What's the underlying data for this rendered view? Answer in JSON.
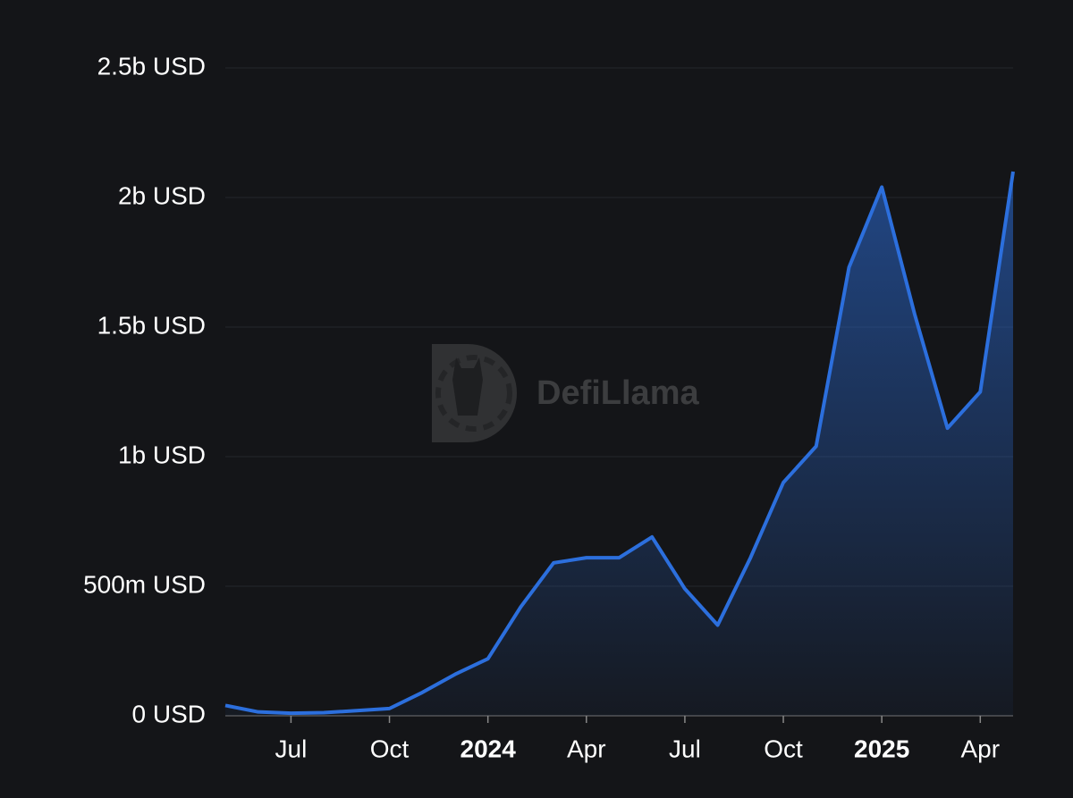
{
  "chart_data": {
    "type": "area",
    "watermark": "DefiLlama",
    "x": [
      "2023-05",
      "2023-06",
      "2023-07",
      "2023-08",
      "2023-09",
      "2023-10",
      "2023-11",
      "2023-12",
      "2024-01",
      "2024-02",
      "2024-03",
      "2024-04",
      "2024-05",
      "2024-06",
      "2024-07",
      "2024-08",
      "2024-09",
      "2024-10",
      "2024-11",
      "2024-12",
      "2025-01",
      "2025-02",
      "2025-03",
      "2025-04",
      "2025-05"
    ],
    "values": [
      40000000,
      15000000,
      10000000,
      12000000,
      20000000,
      28000000,
      90000000,
      160000000,
      220000000,
      420000000,
      590000000,
      610000000,
      610000000,
      690000000,
      490000000,
      350000000,
      610000000,
      900000000,
      1040000000,
      1730000000,
      2040000000,
      1550000000,
      1110000000,
      1250000000,
      2100000000
    ],
    "color": "#2c6fdd",
    "xlim": [
      "2023-05",
      "2025-05"
    ],
    "xticks": [
      {
        "value": "2023-07",
        "label": "Jul"
      },
      {
        "value": "2023-10",
        "label": "Oct"
      },
      {
        "value": "2024-01",
        "label": "2024"
      },
      {
        "value": "2024-04",
        "label": "Apr"
      },
      {
        "value": "2024-07",
        "label": "Jul"
      },
      {
        "value": "2024-10",
        "label": "Oct"
      },
      {
        "value": "2025-01",
        "label": "2025"
      },
      {
        "value": "2025-04",
        "label": "Apr"
      }
    ],
    "ylim": [
      0,
      2500000000
    ],
    "yticks": [
      {
        "value": 0,
        "label": "0 USD"
      },
      {
        "value": 500000000,
        "label": "500m USD"
      },
      {
        "value": 1000000000,
        "label": "1b USD"
      },
      {
        "value": 1500000000,
        "label": "1.5b USD"
      },
      {
        "value": 2000000000,
        "label": "2b USD"
      },
      {
        "value": 2500000000,
        "label": "2.5b USD"
      }
    ],
    "grid": true
  }
}
